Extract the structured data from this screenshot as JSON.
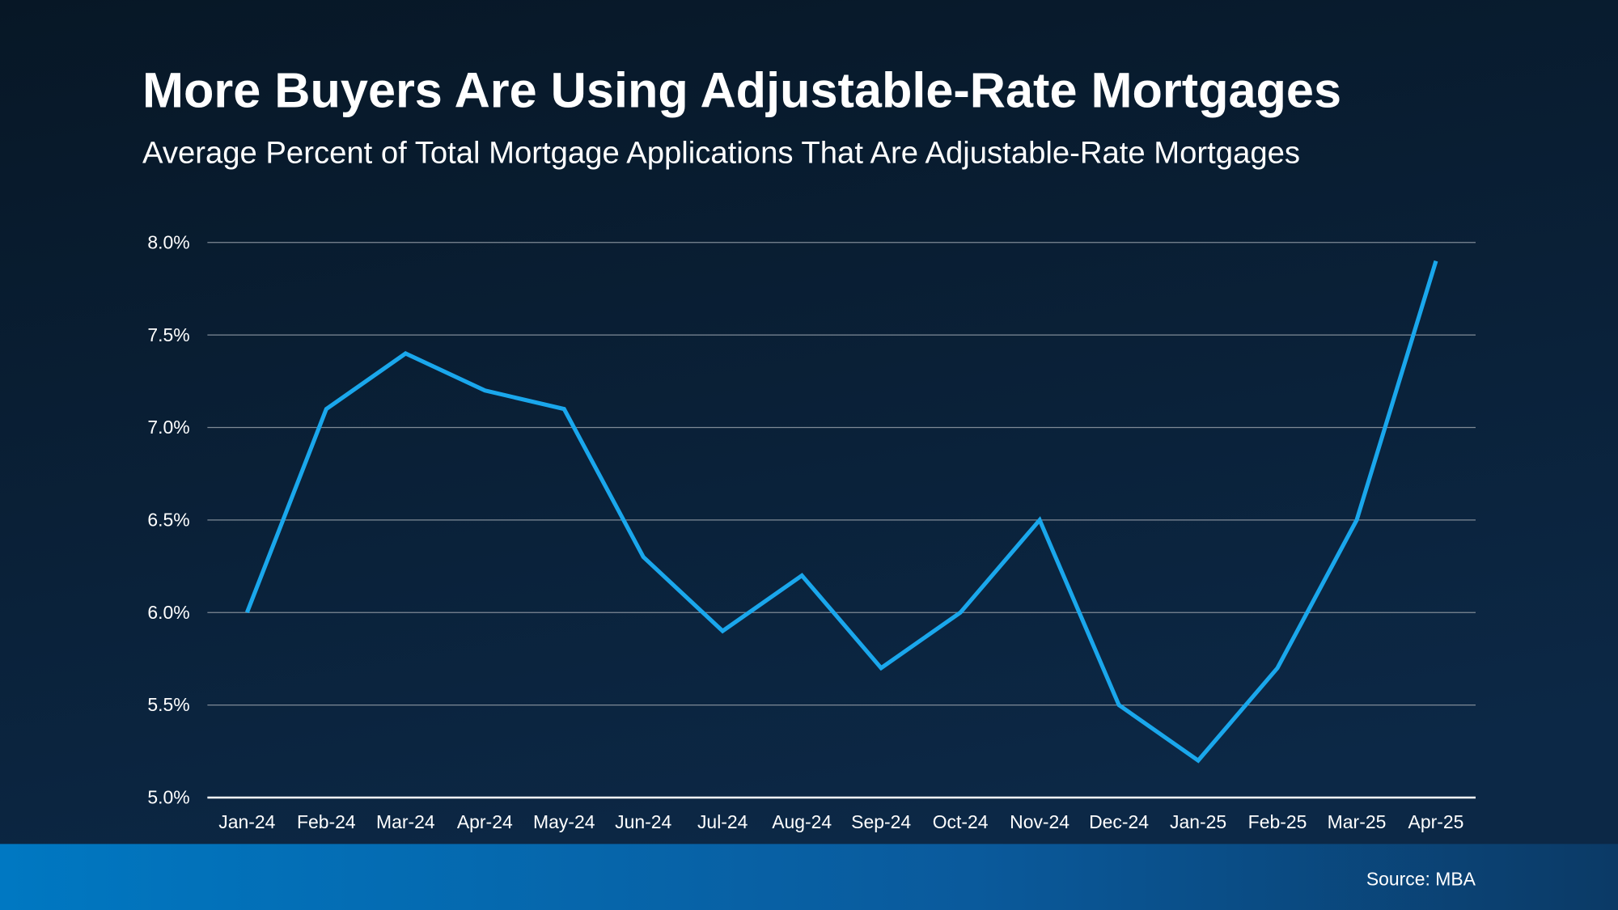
{
  "chart_data": {
    "type": "line",
    "title": "More Buyers Are Using Adjustable-Rate Mortgages",
    "subtitle": "Average Percent of Total Mortgage Applications That Are Adjustable-Rate Mortgages",
    "source": "Source: MBA",
    "categories": [
      "Jan-24",
      "Feb-24",
      "Mar-24",
      "Apr-24",
      "May-24",
      "Jun-24",
      "Jul-24",
      "Aug-24",
      "Sep-24",
      "Oct-24",
      "Nov-24",
      "Dec-24",
      "Jan-25",
      "Feb-25",
      "Mar-25",
      "Apr-25"
    ],
    "values": [
      6.0,
      7.1,
      7.4,
      7.2,
      7.1,
      6.3,
      5.9,
      6.2,
      5.7,
      6.0,
      6.5,
      5.5,
      5.2,
      5.7,
      6.5,
      7.9
    ],
    "color": "#1aa7ec",
    "ylim": [
      5,
      8
    ],
    "yticks": [
      {
        "value": 5,
        "label": "5.0%"
      },
      {
        "value": 5.5,
        "label": "5.5%"
      },
      {
        "value": 6,
        "label": "6.0%"
      },
      {
        "value": 6.5,
        "label": "6.5%"
      },
      {
        "value": 7,
        "label": "7.0%"
      },
      {
        "value": 7.5,
        "label": "7.5%"
      },
      {
        "value": 8,
        "label": "8.0%"
      }
    ],
    "grid": true
  }
}
